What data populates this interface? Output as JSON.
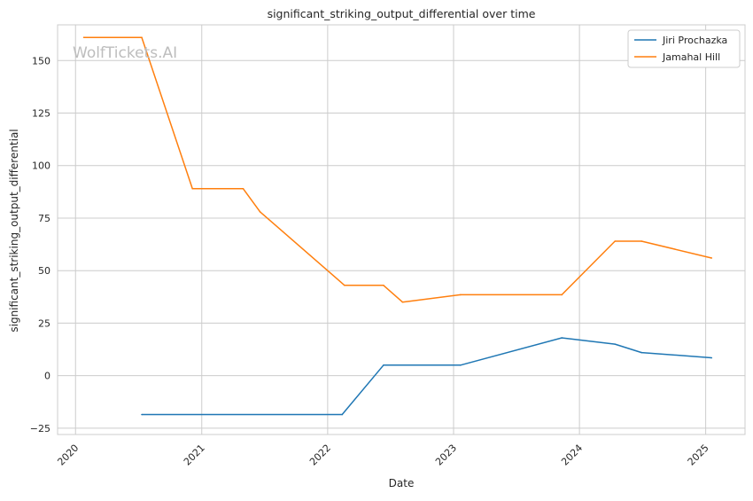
{
  "watermark": "WolfTickets.AI",
  "chart_data": {
    "type": "line",
    "title": "significant_striking_output_differential over time",
    "xlabel": "Date",
    "ylabel": "significant_striking_output_differential",
    "x_ticks": [
      "2020",
      "2021",
      "2022",
      "2023",
      "2024",
      "2025"
    ],
    "y_ticks": [
      -25,
      0,
      25,
      50,
      75,
      100,
      125,
      150
    ],
    "ylim": [
      -28,
      167
    ],
    "xlim": [
      "2019-11-10",
      "2025-04-25"
    ],
    "grid": true,
    "legend_position": "top-right",
    "series": [
      {
        "name": "Jiri Prochazka",
        "color": "#1f77b4",
        "points": [
          {
            "x": "2020-07-11",
            "y": -18.5
          },
          {
            "x": "2022-02-12",
            "y": -18.5
          },
          {
            "x": "2022-06-12",
            "y": 5
          },
          {
            "x": "2023-01-21",
            "y": 5
          },
          {
            "x": "2023-11-11",
            "y": 18
          },
          {
            "x": "2024-04-13",
            "y": 15
          },
          {
            "x": "2024-06-29",
            "y": 11
          },
          {
            "x": "2025-01-18",
            "y": 8.5
          }
        ]
      },
      {
        "name": "Jamahal Hill",
        "color": "#ff7f0e",
        "points": [
          {
            "x": "2020-01-25",
            "y": 161
          },
          {
            "x": "2020-07-11",
            "y": 161
          },
          {
            "x": "2020-12-05",
            "y": 89
          },
          {
            "x": "2021-05-01",
            "y": 89
          },
          {
            "x": "2021-06-19",
            "y": 78
          },
          {
            "x": "2022-02-19",
            "y": 43
          },
          {
            "x": "2022-06-12",
            "y": 43
          },
          {
            "x": "2022-08-06",
            "y": 35
          },
          {
            "x": "2023-01-21",
            "y": 38.5
          },
          {
            "x": "2023-11-11",
            "y": 38.5
          },
          {
            "x": "2024-04-13",
            "y": 64
          },
          {
            "x": "2024-06-29",
            "y": 64
          },
          {
            "x": "2025-01-18",
            "y": 56
          }
        ]
      }
    ]
  }
}
